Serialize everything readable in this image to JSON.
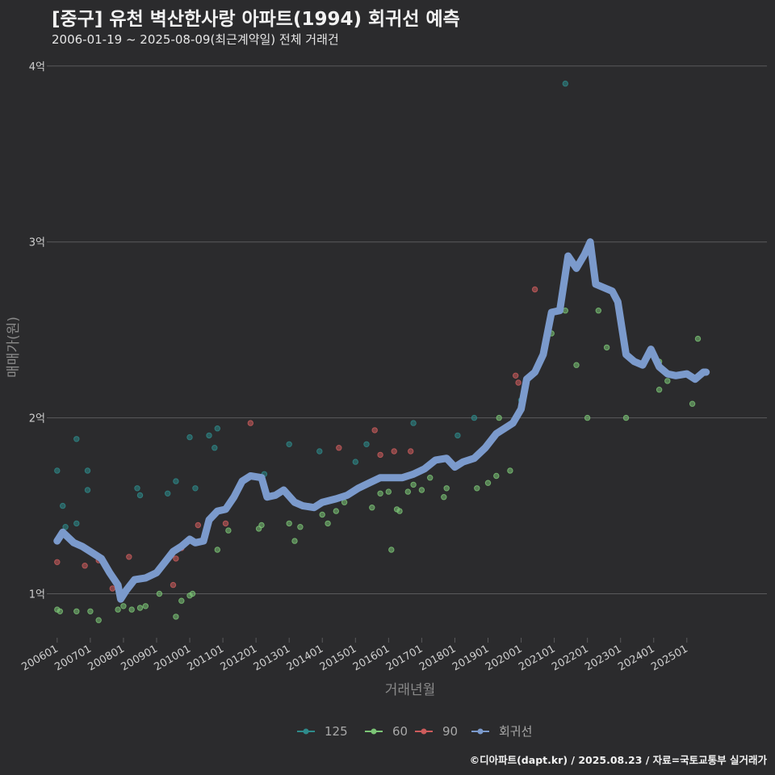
{
  "header": {
    "title": "[중구] 유천 벽산한사랑 아파트(1994) 회귀선 예측",
    "subtitle": "2006-01-19 ~ 2025-08-09(최근계약일) 전체 거래건"
  },
  "caption": "©디아파트(dapt.kr) / 2025.08.23 / 자료=국토교통부 실거래가",
  "chart_data": {
    "type": "scatter",
    "xlabel": "거래년월",
    "ylabel": "매매가(원)",
    "x_range": [
      "2005-11",
      "2027-06"
    ],
    "ylim": [
      0.75,
      4.1
    ],
    "y_unit": "억",
    "y_ticks": [
      {
        "value": 1,
        "label": "1억"
      },
      {
        "value": 2,
        "label": "2억"
      },
      {
        "value": 3,
        "label": "3억"
      },
      {
        "value": 4,
        "label": "4억"
      }
    ],
    "x_ticks": [
      "200601",
      "200701",
      "200801",
      "200901",
      "201001",
      "201101",
      "201201",
      "201301",
      "201401",
      "201501",
      "201601",
      "201701",
      "201801",
      "201901",
      "202001",
      "202101",
      "202201",
      "202301",
      "202401",
      "202501"
    ],
    "grid": true,
    "legend_position": "bottom",
    "series": [
      {
        "name": "125",
        "color": "#2e8b8b",
        "points": [
          [
            "2006-01",
            1.7
          ],
          [
            "2006-03",
            1.5
          ],
          [
            "2006-04",
            1.38
          ],
          [
            "2006-08",
            1.88
          ],
          [
            "2006-08",
            1.4
          ],
          [
            "2006-12",
            1.7
          ],
          [
            "2006-12",
            1.59
          ],
          [
            "2008-06",
            1.6
          ],
          [
            "2008-07",
            1.56
          ],
          [
            "2009-05",
            1.57
          ],
          [
            "2009-08",
            1.64
          ],
          [
            "2010-01",
            1.89
          ],
          [
            "2010-03",
            1.6
          ],
          [
            "2010-08",
            1.9
          ],
          [
            "2010-10",
            1.83
          ],
          [
            "2010-11",
            1.94
          ],
          [
            "2012-04",
            1.68
          ],
          [
            "2013-01",
            1.85
          ],
          [
            "2013-12",
            1.81
          ],
          [
            "2015-01",
            1.75
          ],
          [
            "2015-05",
            1.85
          ],
          [
            "2016-10",
            1.97
          ],
          [
            "2018-02",
            1.9
          ],
          [
            "2018-08",
            2.0
          ],
          [
            "2020-01",
            2.1
          ],
          [
            "2021-05",
            3.9
          ]
        ]
      },
      {
        "name": "60",
        "color": "#7cc576",
        "points": [
          [
            "2006-01",
            0.91
          ],
          [
            "2006-02",
            0.9
          ],
          [
            "2006-08",
            0.9
          ],
          [
            "2007-01",
            0.9
          ],
          [
            "2007-04",
            0.85
          ],
          [
            "2007-11",
            0.91
          ],
          [
            "2008-01",
            0.93
          ],
          [
            "2008-04",
            0.91
          ],
          [
            "2008-07",
            0.92
          ],
          [
            "2008-09",
            0.93
          ],
          [
            "2009-02",
            1.0
          ],
          [
            "2009-08",
            0.87
          ],
          [
            "2009-10",
            0.96
          ],
          [
            "2010-01",
            0.99
          ],
          [
            "2010-02",
            1.0
          ],
          [
            "2010-11",
            1.25
          ],
          [
            "2011-03",
            1.36
          ],
          [
            "2012-02",
            1.37
          ],
          [
            "2012-03",
            1.39
          ],
          [
            "2013-01",
            1.4
          ],
          [
            "2013-03",
            1.3
          ],
          [
            "2013-05",
            1.38
          ],
          [
            "2014-01",
            1.45
          ],
          [
            "2014-03",
            1.4
          ],
          [
            "2014-06",
            1.47
          ],
          [
            "2014-09",
            1.52
          ],
          [
            "2015-07",
            1.49
          ],
          [
            "2015-10",
            1.57
          ],
          [
            "2016-01",
            1.58
          ],
          [
            "2016-02",
            1.25
          ],
          [
            "2016-04",
            1.48
          ],
          [
            "2016-05",
            1.47
          ],
          [
            "2016-08",
            1.58
          ],
          [
            "2016-10",
            1.62
          ],
          [
            "2017-01",
            1.59
          ],
          [
            "2017-04",
            1.66
          ],
          [
            "2017-09",
            1.55
          ],
          [
            "2017-10",
            1.6
          ],
          [
            "2018-09",
            1.6
          ],
          [
            "2019-01",
            1.63
          ],
          [
            "2019-04",
            1.67
          ],
          [
            "2019-05",
            2.0
          ],
          [
            "2019-09",
            1.7
          ],
          [
            "2020-12",
            2.48
          ],
          [
            "2021-05",
            2.61
          ],
          [
            "2021-09",
            2.3
          ],
          [
            "2022-01",
            2.0
          ],
          [
            "2022-05",
            2.61
          ],
          [
            "2022-08",
            2.4
          ],
          [
            "2023-03",
            2.0
          ],
          [
            "2023-11",
            2.35
          ],
          [
            "2024-03",
            2.32
          ],
          [
            "2024-03",
            2.16
          ],
          [
            "2024-06",
            2.21
          ],
          [
            "2025-03",
            2.08
          ],
          [
            "2025-05",
            2.45
          ]
        ]
      },
      {
        "name": "90",
        "color": "#cd5c5c",
        "points": [
          [
            "2006-01",
            1.18
          ],
          [
            "2006-11",
            1.16
          ],
          [
            "2007-04",
            1.19
          ],
          [
            "2007-09",
            1.03
          ],
          [
            "2008-03",
            1.21
          ],
          [
            "2009-06",
            1.22
          ],
          [
            "2009-08",
            1.2
          ],
          [
            "2009-07",
            1.05
          ],
          [
            "2009-10",
            1.26
          ],
          [
            "2010-04",
            1.39
          ],
          [
            "2011-02",
            1.4
          ],
          [
            "2011-11",
            1.97
          ],
          [
            "2014-07",
            1.83
          ],
          [
            "2015-08",
            1.93
          ],
          [
            "2015-10",
            1.79
          ],
          [
            "2016-03",
            1.81
          ],
          [
            "2016-09",
            1.81
          ],
          [
            "2019-11",
            2.24
          ],
          [
            "2019-12",
            2.2
          ],
          [
            "2020-06",
            2.73
          ]
        ]
      },
      {
        "name": "회귀선",
        "color": "#7b9acc",
        "points": [
          [
            "2006-01",
            1.3
          ],
          [
            "2006-03",
            1.35
          ],
          [
            "2006-05",
            1.32
          ],
          [
            "2006-07",
            1.29
          ],
          [
            "2006-10",
            1.27
          ],
          [
            "2007-01",
            1.24
          ],
          [
            "2007-05",
            1.2
          ],
          [
            "2007-08",
            1.12
          ],
          [
            "2007-11",
            1.05
          ],
          [
            "2007-12",
            0.97
          ],
          [
            "2008-02",
            1.02
          ],
          [
            "2008-05",
            1.08
          ],
          [
            "2008-09",
            1.09
          ],
          [
            "2009-01",
            1.12
          ],
          [
            "2009-04",
            1.18
          ],
          [
            "2009-07",
            1.24
          ],
          [
            "2009-10",
            1.27
          ],
          [
            "2010-01",
            1.31
          ],
          [
            "2010-03",
            1.29
          ],
          [
            "2010-06",
            1.3
          ],
          [
            "2010-08",
            1.42
          ],
          [
            "2010-11",
            1.47
          ],
          [
            "2011-02",
            1.48
          ],
          [
            "2011-05",
            1.55
          ],
          [
            "2011-08",
            1.64
          ],
          [
            "2011-11",
            1.67
          ],
          [
            "2012-03",
            1.66
          ],
          [
            "2012-05",
            1.55
          ],
          [
            "2012-08",
            1.56
          ],
          [
            "2012-11",
            1.59
          ],
          [
            "2013-03",
            1.52
          ],
          [
            "2013-06",
            1.5
          ],
          [
            "2013-10",
            1.49
          ],
          [
            "2014-01",
            1.52
          ],
          [
            "2014-06",
            1.54
          ],
          [
            "2014-10",
            1.56
          ],
          [
            "2015-02",
            1.6
          ],
          [
            "2015-06",
            1.63
          ],
          [
            "2015-10",
            1.66
          ],
          [
            "2016-02",
            1.66
          ],
          [
            "2016-06",
            1.66
          ],
          [
            "2016-10",
            1.68
          ],
          [
            "2017-02",
            1.71
          ],
          [
            "2017-06",
            1.76
          ],
          [
            "2017-10",
            1.77
          ],
          [
            "2018-01",
            1.72
          ],
          [
            "2018-04",
            1.75
          ],
          [
            "2018-08",
            1.77
          ],
          [
            "2018-12",
            1.83
          ],
          [
            "2019-04",
            1.91
          ],
          [
            "2019-07",
            1.94
          ],
          [
            "2019-10",
            1.97
          ],
          [
            "2020-01",
            2.05
          ],
          [
            "2020-03",
            2.22
          ],
          [
            "2020-06",
            2.26
          ],
          [
            "2020-09",
            2.36
          ],
          [
            "2020-12",
            2.6
          ],
          [
            "2021-03",
            2.61
          ],
          [
            "2021-06",
            2.92
          ],
          [
            "2021-09",
            2.85
          ],
          [
            "2021-12",
            2.93
          ],
          [
            "2022-02",
            3.0
          ],
          [
            "2022-04",
            2.76
          ],
          [
            "2022-07",
            2.74
          ],
          [
            "2022-10",
            2.72
          ],
          [
            "2022-12",
            2.66
          ],
          [
            "2023-03",
            2.36
          ],
          [
            "2023-06",
            2.32
          ],
          [
            "2023-09",
            2.3
          ],
          [
            "2023-12",
            2.39
          ],
          [
            "2024-03",
            2.29
          ],
          [
            "2024-06",
            2.25
          ],
          [
            "2024-09",
            2.24
          ],
          [
            "2025-01",
            2.25
          ],
          [
            "2025-04",
            2.22
          ],
          [
            "2025-07",
            2.26
          ],
          [
            "2025-08",
            2.26
          ]
        ]
      }
    ]
  }
}
